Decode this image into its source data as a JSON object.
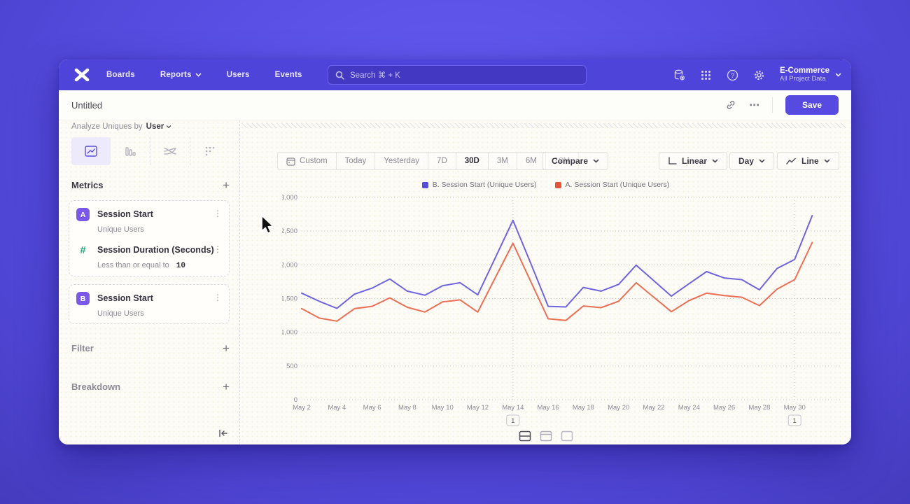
{
  "nav": {
    "brand": "mixpanel-logo",
    "items": [
      "Boards",
      "Reports",
      "Users",
      "Events"
    ],
    "search_placeholder": "Search  ⌘ + K",
    "project_name": "E-Commerce",
    "project_scope": "All Project Data"
  },
  "header": {
    "title": "Untitled",
    "save_label": "Save",
    "more_label": "⋯"
  },
  "sidebar": {
    "analyze_label": "Analyze Uniques by",
    "analyze_value": "User",
    "metrics_title": "Metrics",
    "metric_cards": [
      {
        "rows": [
          {
            "badge": "A",
            "title": "Session Start",
            "subtitle": "Unique Users"
          },
          {
            "badge": "#",
            "title": "Session Duration (Seconds)",
            "subtitle": "Less than or equal to",
            "value": "10"
          }
        ]
      },
      {
        "rows": [
          {
            "badge": "B",
            "title": "Session Start",
            "subtitle": "Unique Users"
          }
        ]
      }
    ],
    "filter_label": "Filter",
    "breakdown_label": "Breakdown"
  },
  "toolbar": {
    "ranges": [
      "Custom",
      "Today",
      "Yesterday",
      "7D",
      "30D",
      "3M",
      "6M",
      "12M"
    ],
    "active_range": "30D",
    "compare_label": "Compare",
    "scale_label": "Linear",
    "interval_label": "Day",
    "chart_type_label": "Line"
  },
  "colors": {
    "nav_purple": "#4f44d9",
    "accent_purple": "#564ae0",
    "series_b": "#6f63e0",
    "series_a": "#ec6e54",
    "swatch_b": "#5a4ddc",
    "swatch_a": "#e8523a",
    "badge_purple": "#7a58e8",
    "hash_teal": "#18a97b"
  },
  "chart_data": {
    "type": "line",
    "x": [
      "May 2",
      "May 3",
      "May 4",
      "May 5",
      "May 6",
      "May 7",
      "May 8",
      "May 9",
      "May 10",
      "May 11",
      "May 12",
      "May 13",
      "May 14",
      "May 15",
      "May 16",
      "May 17",
      "May 18",
      "May 19",
      "May 20",
      "May 21",
      "May 22",
      "May 23",
      "May 24",
      "May 25",
      "May 26",
      "May 27",
      "May 28",
      "May 29",
      "May 30",
      "May 31"
    ],
    "x_tick_every": 2,
    "ylim": [
      0,
      3000
    ],
    "ytick_step": 500,
    "grid": "horizontal-dotted",
    "legend_position": "top-center",
    "series": [
      {
        "name": "B. Session Start (Unique Users)",
        "color": "#6f63e0",
        "swatch": "#5a4ddc",
        "values": [
          1580,
          1460,
          1355,
          1565,
          1655,
          1790,
          1610,
          1550,
          1690,
          1735,
          1555,
          2105,
          2660,
          2030,
          1385,
          1375,
          1665,
          1610,
          1710,
          1995,
          1765,
          1535,
          1720,
          1900,
          1805,
          1780,
          1630,
          1945,
          2080,
          2730
        ]
      },
      {
        "name": "A. Session Start (Unique Users)",
        "color": "#ec6e54",
        "swatch": "#e8523a",
        "values": [
          1350,
          1210,
          1165,
          1350,
          1385,
          1510,
          1370,
          1300,
          1450,
          1480,
          1300,
          1810,
          2320,
          1760,
          1200,
          1175,
          1390,
          1365,
          1460,
          1735,
          1520,
          1305,
          1470,
          1580,
          1545,
          1520,
          1395,
          1640,
          1780,
          2330
        ]
      }
    ],
    "annotations": [
      {
        "x": "May 14",
        "label": "1"
      },
      {
        "x": "May 30",
        "label": "1"
      }
    ]
  }
}
